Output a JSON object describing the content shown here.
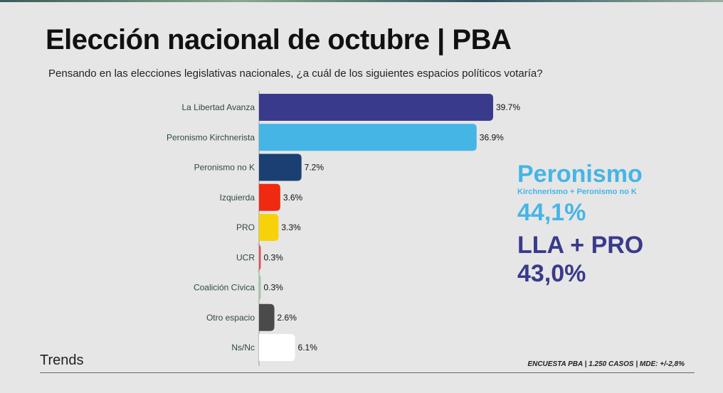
{
  "header": {
    "title": "Elección nacional de octubre | PBA",
    "subtitle": "Pensando en las elecciones legislativas nacionales, ¿a cuál de los siguientes espacios políticos votaría?"
  },
  "chart_data": {
    "type": "bar",
    "orientation": "horizontal",
    "categories": [
      "La Libertad Avanza",
      "Peronismo Kirchnerista",
      "Peronismo no K",
      "Izquierda",
      "PRO",
      "UCR",
      "Coalición Cívica",
      "Otro espacio",
      "Ns/Nc"
    ],
    "values": [
      39.7,
      36.9,
      7.2,
      3.6,
      3.3,
      0.3,
      0.3,
      2.6,
      6.1
    ],
    "data_labels": [
      "39.7%",
      "36.9%",
      "7.2%",
      "3.6%",
      "3.3%",
      "0.3%",
      "0.3%",
      "2.6%",
      "6.1%"
    ],
    "colors": [
      "#3a3a8c",
      "#45b5e6",
      "#1b3f72",
      "#f02a10",
      "#f7d20a",
      "#e0505a",
      "#9ccc9c",
      "#4a4a4a",
      "#ffffff"
    ],
    "xlim": [
      0,
      50
    ],
    "grid": false,
    "legend": "none"
  },
  "summary": {
    "peronismo_label": "Peronismo",
    "peronismo_sub": "Kirchnerismo + Peronismo no K",
    "peronismo_value": "44,1%",
    "lla_label": "LLA + PRO",
    "lla_value": "43,0%",
    "peronismo_color": "#45b5e6",
    "lla_color": "#3a3a8c"
  },
  "footer": {
    "brand": "Trends",
    "note": "ENCUESTA PBA | 1.250 CASOS | MDE: +/-2,8%"
  }
}
